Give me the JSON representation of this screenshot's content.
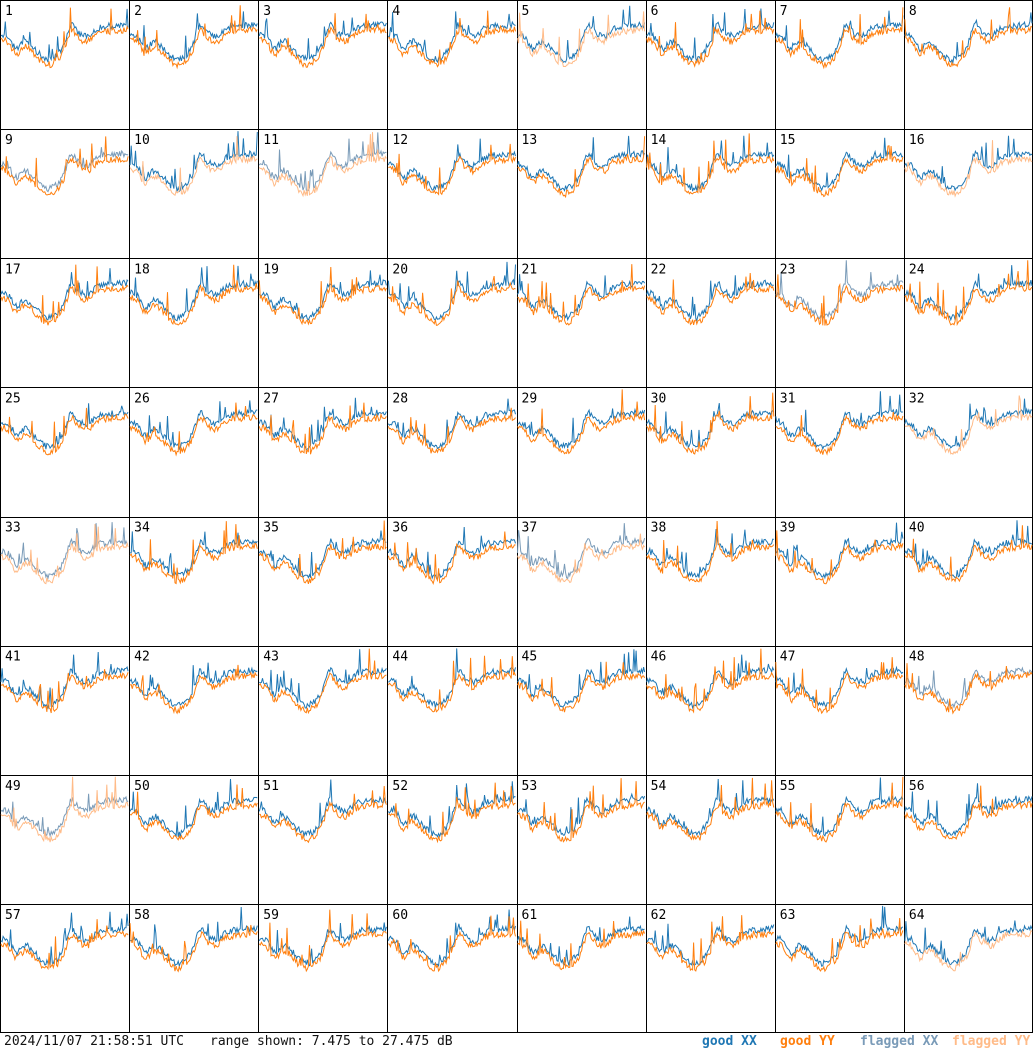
{
  "chart_data": {
    "type": "line",
    "panels": [
      "1",
      "2",
      "3",
      "4",
      "5",
      "6",
      "7",
      "8",
      "9",
      "10",
      "11",
      "12",
      "13",
      "14",
      "15",
      "16",
      "17",
      "18",
      "19",
      "20",
      "21",
      "22",
      "23",
      "24",
      "25",
      "26",
      "27",
      "28",
      "29",
      "30",
      "31",
      "32",
      "33",
      "34",
      "35",
      "36",
      "37",
      "38",
      "39",
      "40",
      "41",
      "42",
      "43",
      "44",
      "45",
      "46",
      "47",
      "48",
      "49",
      "50",
      "51",
      "52",
      "53",
      "54",
      "55",
      "56",
      "57",
      "58",
      "59",
      "60",
      "61",
      "62",
      "63",
      "64"
    ],
    "grid": "8x8",
    "ylim": [
      7.475,
      27.475
    ],
    "series": [
      {
        "name": "good XX",
        "color": "#1f77b4"
      },
      {
        "name": "good YY",
        "color": "#ff7f0e"
      },
      {
        "name": "flagged XX",
        "color": "#7a9bb8"
      },
      {
        "name": "flagged YY",
        "color": "#ffbb88"
      }
    ],
    "panel_status": {
      "flagged_xx": [
        "9",
        "11",
        "23",
        "33",
        "37",
        "48",
        "49"
      ],
      "flagged_yy": [
        "5",
        "10",
        "11",
        "16",
        "32",
        "33",
        "37",
        "49",
        "64"
      ]
    }
  },
  "footer": {
    "timestamp": "2024/11/07 21:58:51 UTC",
    "range_text": "range shown: 7.475 to 27.475 dB",
    "legend": [
      "good XX",
      "good YY",
      "flagged XX",
      "flagged YY"
    ]
  }
}
